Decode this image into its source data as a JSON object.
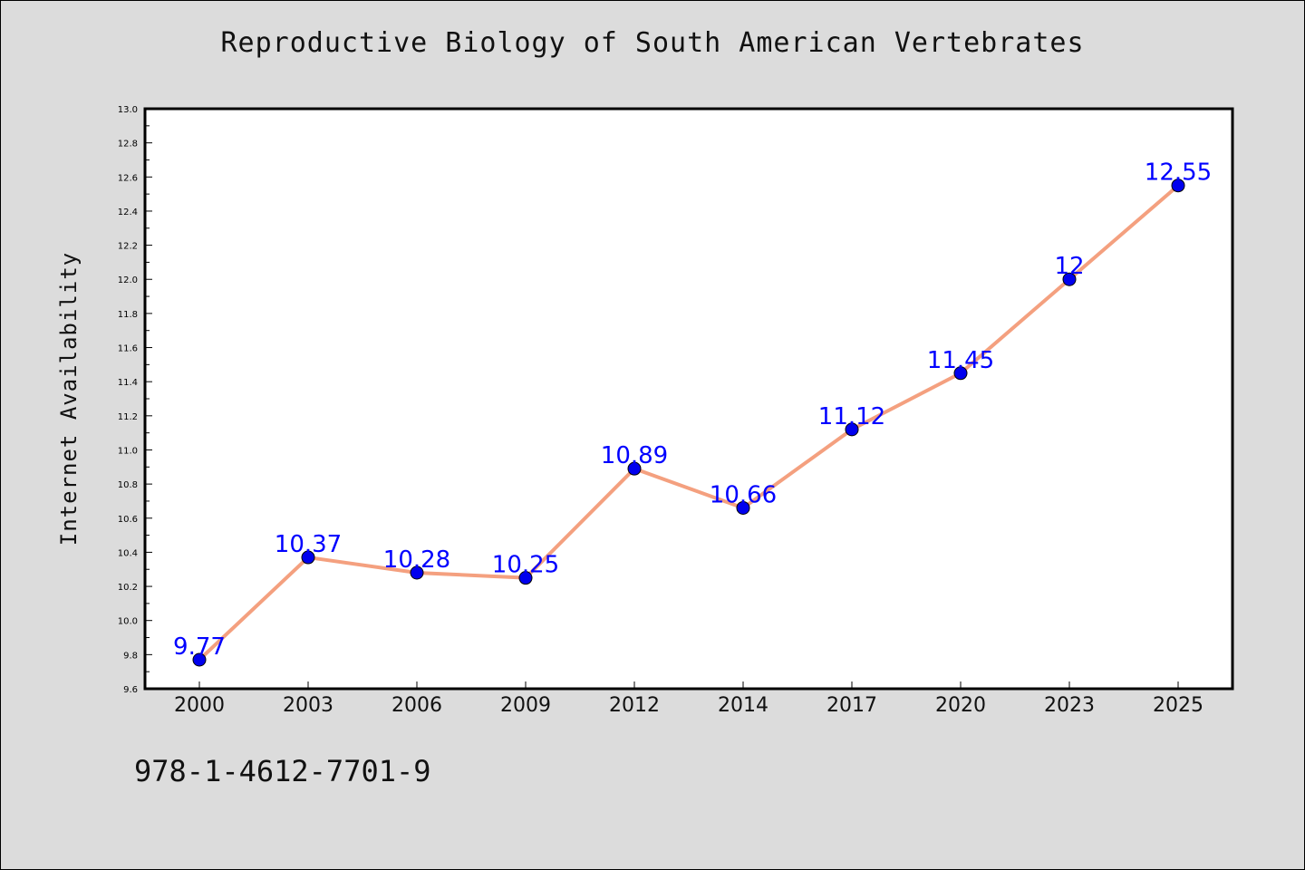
{
  "chart_data": {
    "type": "line",
    "title": "Reproductive Biology of South American Vertebrates",
    "xlabel": "",
    "ylabel": "Internet Availability",
    "categories": [
      "2000",
      "2003",
      "2006",
      "2009",
      "2012",
      "2014",
      "2017",
      "2020",
      "2023",
      "2025"
    ],
    "values": [
      9.77,
      10.37,
      10.28,
      10.25,
      10.89,
      10.66,
      11.12,
      11.45,
      12,
      12.55
    ],
    "value_labels": [
      "9.77",
      "10.37",
      "10.28",
      "10.25",
      "10.89",
      "10.66",
      "11.12",
      "11.45",
      "12",
      "12.55"
    ],
    "ylim": [
      9.6,
      13.0
    ],
    "y_ticks": [
      "9.6",
      "9.8",
      "10.0",
      "10.2",
      "10.4",
      "10.6",
      "10.8",
      "11.0",
      "11.2",
      "11.4",
      "11.6",
      "11.8",
      "12.0",
      "12.2",
      "12.4",
      "12.6",
      "12.8",
      "13.0"
    ],
    "grid": false,
    "legend": "none",
    "colors": {
      "line": "#f4a07f",
      "marker": "#0000ee",
      "label": "#0000ff",
      "background": "#dcdcdc",
      "plot_background": "#ffffff"
    }
  },
  "footer": {
    "code": "978-1-4612-7701-9"
  }
}
